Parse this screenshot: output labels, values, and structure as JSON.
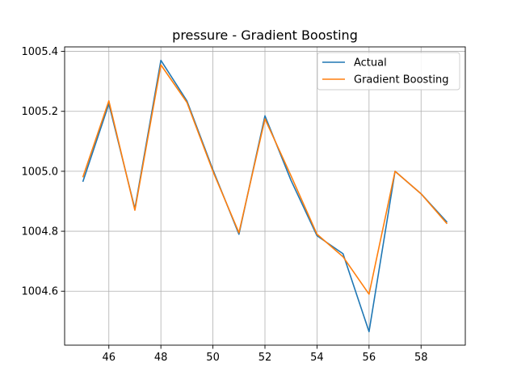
{
  "chart_data": {
    "type": "line",
    "title": "pressure - Gradient Boosting",
    "xlabel": "",
    "ylabel": "",
    "x": [
      45,
      46,
      47,
      48,
      49,
      50,
      51,
      52,
      53,
      54,
      55,
      56,
      57,
      58,
      59
    ],
    "series": [
      {
        "name": "Actual",
        "color": "#1f77b4",
        "values": [
          1004.965,
          1005.225,
          1004.875,
          1005.37,
          1005.235,
          1005.005,
          1004.79,
          1005.185,
          1004.97,
          1004.785,
          1004.725,
          1004.465,
          1005.0,
          1004.925,
          1004.83
        ]
      },
      {
        "name": "Gradient Boosting",
        "color": "#ff7f0e",
        "values": [
          1004.98,
          1005.235,
          1004.87,
          1005.355,
          1005.23,
          1005.0,
          1004.795,
          1005.175,
          1004.985,
          1004.79,
          1004.715,
          1004.59,
          1005.0,
          1004.925,
          1004.825
        ]
      }
    ],
    "xlim": [
      44.3,
      59.7
    ],
    "ylim": [
      1004.42,
      1005.415
    ],
    "xticks": [
      46,
      48,
      50,
      52,
      54,
      56,
      58
    ],
    "xtick_labels": [
      "46",
      "48",
      "50",
      "52",
      "54",
      "56",
      "58"
    ],
    "yticks": [
      1004.6,
      1004.8,
      1005.0,
      1005.2,
      1005.4
    ],
    "ytick_labels": [
      "1004.6",
      "1004.8",
      "1005.0",
      "1005.2",
      "1005.4"
    ],
    "grid": true,
    "legend_position": "top-right"
  }
}
